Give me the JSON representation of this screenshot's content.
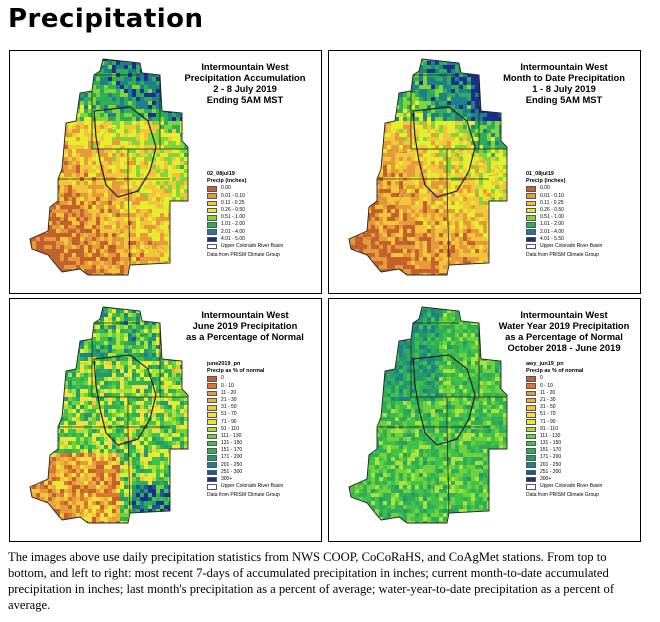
{
  "page_title": "Precipitation",
  "panels": [
    {
      "title_lines": [
        "Intermountain West",
        "Precipitation Accumulation",
        "2 - 8 July 2019",
        "Ending 5AM MST"
      ],
      "legend_id": "02_08jul19",
      "legend_heading": "Precip (inches)",
      "scheme": "accum",
      "legend": [
        {
          "label": "0.00",
          "color": "#c4622d"
        },
        {
          "label": "0.01 - 0.10",
          "color": "#e69a3a"
        },
        {
          "label": "0.11 - 0.25",
          "color": "#f2c53d"
        },
        {
          "label": "0.26 - 0.50",
          "color": "#e5ed2e"
        },
        {
          "label": "0.51 - 1.00",
          "color": "#7fd63a"
        },
        {
          "label": "1.01 - 2.00",
          "color": "#2fae5a"
        },
        {
          "label": "2.01 - 4.00",
          "color": "#1f7f8a"
        },
        {
          "label": "4.01 - 5.00",
          "color": "#1b2f8f"
        }
      ],
      "basin_label": "Upper Colorado River Basin",
      "source": "Data from PRISM Climate Group"
    },
    {
      "title_lines": [
        "Intermountain West",
        "Month to Date Precipitation",
        "1 - 8 July 2019",
        "Ending 5AM MST"
      ],
      "legend_id": "01_08jul19",
      "legend_heading": "Precip (inches)",
      "scheme": "mtd",
      "legend": [
        {
          "label": "0.00",
          "color": "#c4622d"
        },
        {
          "label": "0.01 - 0.10",
          "color": "#e69a3a"
        },
        {
          "label": "0.11 - 0.25",
          "color": "#f2c53d"
        },
        {
          "label": "0.26 - 0.50",
          "color": "#e5ed2e"
        },
        {
          "label": "0.51 - 1.00",
          "color": "#7fd63a"
        },
        {
          "label": "1.01 - 2.00",
          "color": "#2fae5a"
        },
        {
          "label": "2.01 - 4.00",
          "color": "#1f7f8a"
        },
        {
          "label": "4.01 - 5.50",
          "color": "#1b2f8f"
        }
      ],
      "basin_label": "Upper Colorado River Basin",
      "source": "Data from PRISM Climate Group"
    },
    {
      "title_lines": [
        "Intermountain West",
        "June 2019 Precipitation",
        "as a Percentage of Normal"
      ],
      "legend_id": "june2019_pn",
      "legend_heading": "Precip as % of normal",
      "scheme": "june",
      "legend": [
        {
          "label": "0",
          "color": "#c4622d"
        },
        {
          "label": "0 - 10",
          "color": "#d9772f"
        },
        {
          "label": "11 - 20",
          "color": "#e69a3a"
        },
        {
          "label": "21 - 30",
          "color": "#ecb03a"
        },
        {
          "label": "31 - 50",
          "color": "#f2c53d"
        },
        {
          "label": "51 - 70",
          "color": "#f3de44"
        },
        {
          "label": "71 - 90",
          "color": "#e5ed2e"
        },
        {
          "label": "91 - 110",
          "color": "#a8e23a"
        },
        {
          "label": "111 - 130",
          "color": "#6fd23c"
        },
        {
          "label": "131 - 150",
          "color": "#3fc24a"
        },
        {
          "label": "151 - 170",
          "color": "#2fae5a"
        },
        {
          "label": "171 - 200",
          "color": "#249a6a"
        },
        {
          "label": "201 - 250",
          "color": "#1f7f8a"
        },
        {
          "label": "251 - 300",
          "color": "#1a5a8f"
        },
        {
          "label": "300+",
          "color": "#1b2f8f"
        }
      ],
      "basin_label": "Upper Colorado River Basin",
      "source": "Data from PRISM Climate Group"
    },
    {
      "title_lines": [
        "Intermountain West",
        "Water Year 2019 Precipitation",
        "as a Percentage of Normal",
        "October 2018 - June 2019"
      ],
      "legend_id": "awy_jun19_pn",
      "legend_heading": "Precip as % of normal",
      "scheme": "wy",
      "legend": [
        {
          "label": "0",
          "color": "#c4622d"
        },
        {
          "label": "0 - 10",
          "color": "#d9772f"
        },
        {
          "label": "11 - 20",
          "color": "#e69a3a"
        },
        {
          "label": "21 - 30",
          "color": "#ecb03a"
        },
        {
          "label": "31 - 50",
          "color": "#f2c53d"
        },
        {
          "label": "51 - 70",
          "color": "#f3de44"
        },
        {
          "label": "71 - 90",
          "color": "#e5ed2e"
        },
        {
          "label": "91 - 110",
          "color": "#a8e23a"
        },
        {
          "label": "111 - 130",
          "color": "#6fd23c"
        },
        {
          "label": "131 - 150",
          "color": "#3fc24a"
        },
        {
          "label": "151 - 170",
          "color": "#2fae5a"
        },
        {
          "label": "171 - 200",
          "color": "#249a6a"
        },
        {
          "label": "201 - 250",
          "color": "#1f7f8a"
        },
        {
          "label": "251 - 300",
          "color": "#1a5a8f"
        },
        {
          "label": "300+",
          "color": "#1b2f8f"
        }
      ],
      "basin_label": "Upper Colorado River Basin",
      "source": "Data from PRISM Climate Group"
    }
  ],
  "caption": "The images above use daily precipitation statistics from NWS COOP, CoCoRaHS, and CoAgMet stations. From top to bottom, and left to right: most recent 7-days of accumulated precipitation in inches; current month-to-date accumulated precipitation in inches; last month's precipitation as a percent of average; water-year-to-date precipitation as a percent of average."
}
